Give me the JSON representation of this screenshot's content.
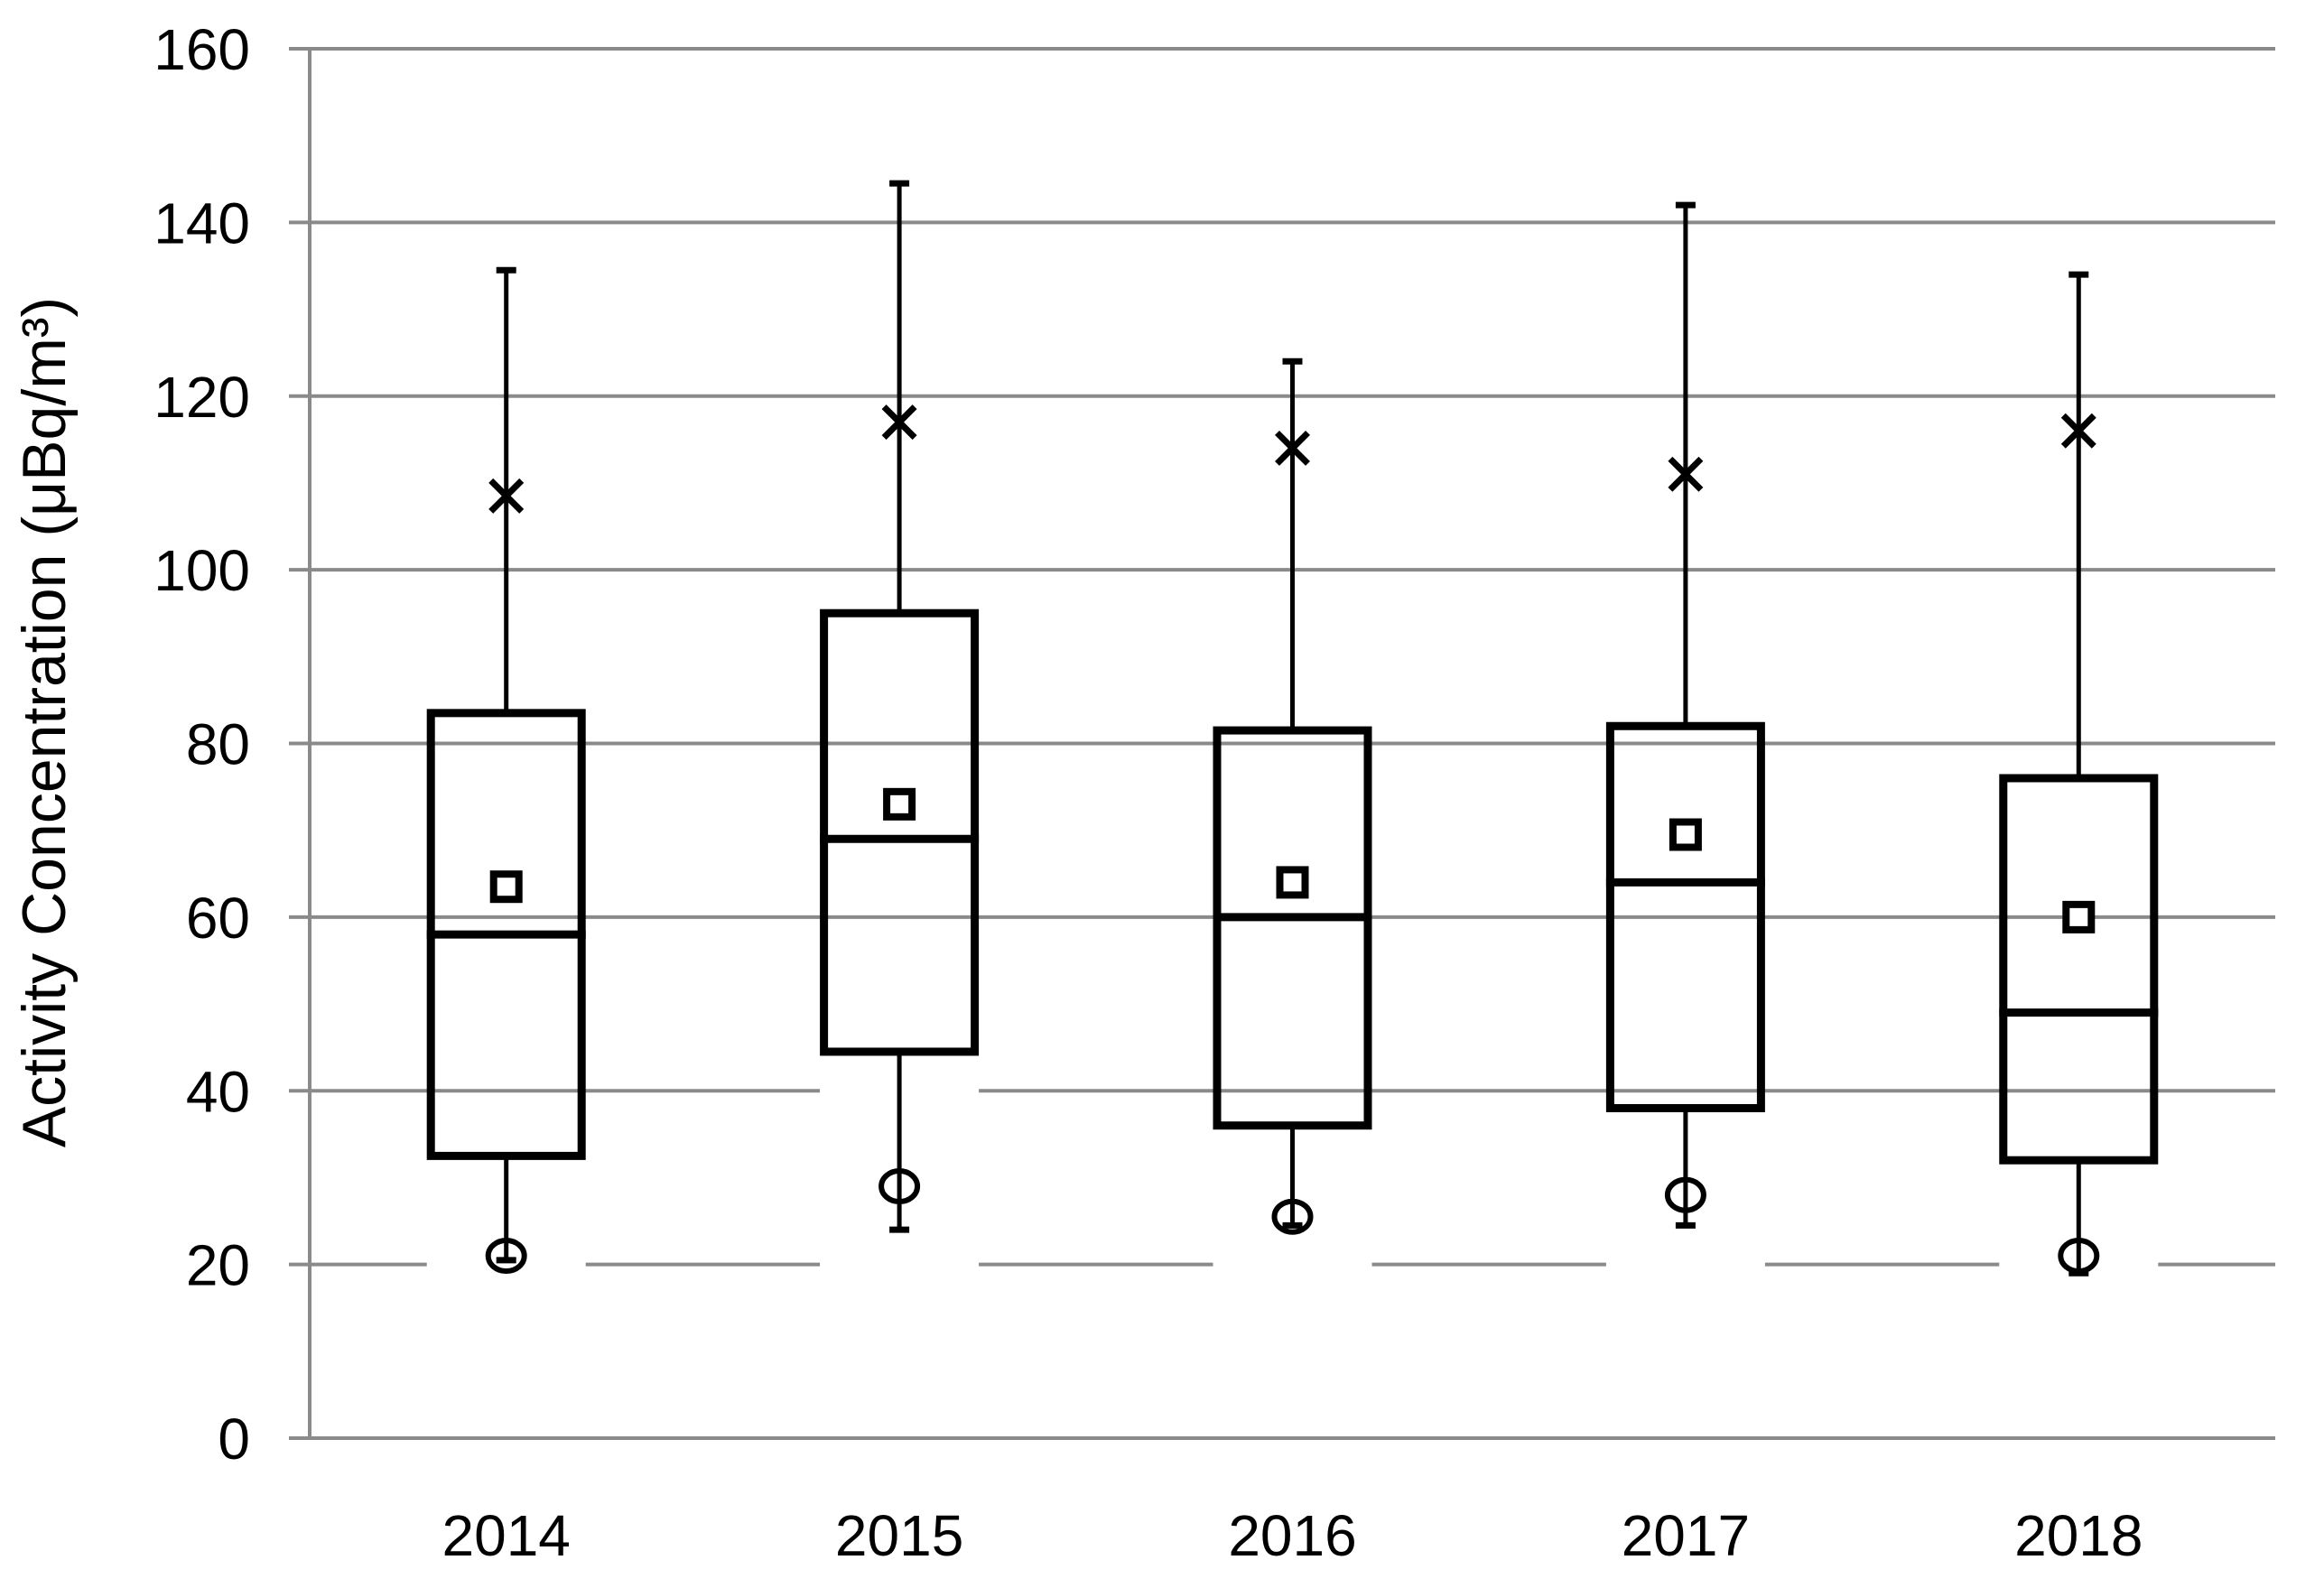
{
  "colors": {
    "ink": "#000000",
    "grid": "#8a8a8a",
    "axis": "#8a8a8a",
    "background": "#ffffff",
    "box_fill": "none",
    "marker_fill": "#ffffff"
  },
  "chart_data": {
    "type": "box",
    "title": "",
    "xlabel": "",
    "ylabel": "Activity Concentration (μBq/m³)",
    "ylim": [
      0,
      160
    ],
    "ytick_step": 20,
    "yticks": [
      0,
      20,
      40,
      60,
      80,
      100,
      120,
      140,
      160
    ],
    "grid": "horizontal",
    "legend": "none",
    "categories": [
      "2014",
      "2015",
      "2016",
      "2017",
      "2018"
    ],
    "boxes": [
      {
        "category": "2014",
        "q1": 32.5,
        "median": 58,
        "q3": 83.5,
        "mean": 63.5,
        "whisker_high": 134.5,
        "whisker_low": 20.5,
        "x_marker": 108.5,
        "circle_marker": 21
      },
      {
        "category": "2015",
        "q1": 44.5,
        "median": 69,
        "q3": 95,
        "mean": 73,
        "whisker_high": 144.5,
        "whisker_low": 24,
        "x_marker": 117,
        "circle_marker": 29
      },
      {
        "category": "2016",
        "q1": 36,
        "median": 60,
        "q3": 81.5,
        "mean": 64,
        "whisker_high": 124,
        "whisker_low": 24.5,
        "x_marker": 114,
        "circle_marker": 25.5
      },
      {
        "category": "2017",
        "q1": 38,
        "median": 64,
        "q3": 82,
        "mean": 69.5,
        "whisker_high": 142,
        "whisker_low": 24.5,
        "x_marker": 111,
        "circle_marker": 28
      },
      {
        "category": "2018",
        "q1": 32,
        "median": 49,
        "q3": 76,
        "mean": 60,
        "whisker_high": 134,
        "whisker_low": 19,
        "x_marker": 116,
        "circle_marker": 21
      }
    ]
  }
}
